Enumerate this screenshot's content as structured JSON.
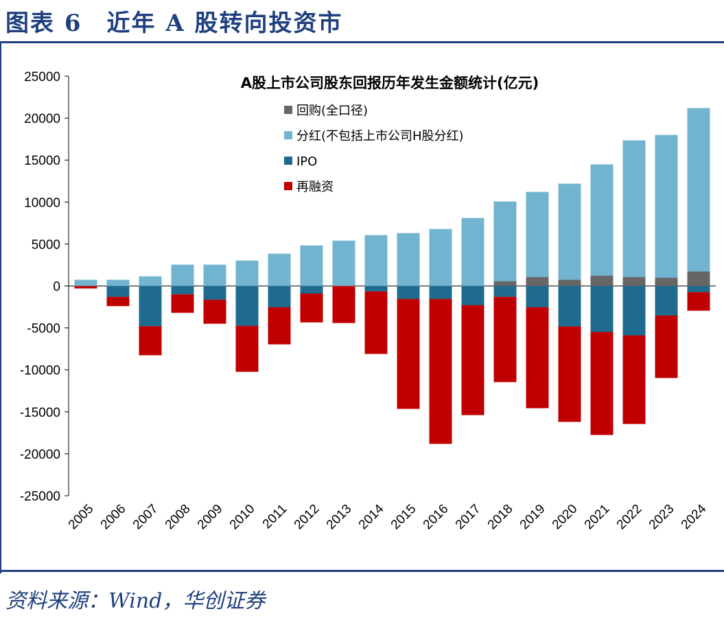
{
  "header": {
    "title": "图表 6　近年 A 股转向投资市"
  },
  "source": "资料来源：Wind，华创证券",
  "chart_data": {
    "type": "bar",
    "stacked": true,
    "title": "A股上市公司股东回报历年发生金额统计(亿元)",
    "xlabel": "",
    "ylabel": "",
    "ylim": [
      -25000,
      25000
    ],
    "yticks": [
      -25000,
      -20000,
      -15000,
      -10000,
      -5000,
      0,
      5000,
      10000,
      15000,
      20000,
      25000
    ],
    "grid": false,
    "legend": "top-left",
    "categories": [
      "2005",
      "2006",
      "2007",
      "2008",
      "2009",
      "2010",
      "2011",
      "2012",
      "2013",
      "2014",
      "2015",
      "2016",
      "2017",
      "2018",
      "2019",
      "2020",
      "2021",
      "2022",
      "2023",
      "2024"
    ],
    "series": [
      {
        "name": "回购(全口径)",
        "color": "#666666",
        "values": [
          0,
          0,
          0,
          0,
          0,
          0,
          0,
          0,
          0,
          0,
          0,
          0,
          0,
          570,
          1060,
          740,
          1230,
          1060,
          980,
          1720
        ]
      },
      {
        "name": "分红(不包括上市公司H股分红)",
        "color": "#72b4cf",
        "values": [
          740,
          740,
          1150,
          2540,
          2540,
          3030,
          3850,
          4830,
          5400,
          6060,
          6300,
          6790,
          8100,
          9500,
          10150,
          11450,
          13260,
          16290,
          17020,
          19480
        ]
      },
      {
        "name": "IPO",
        "color": "#1f6a8f",
        "values": [
          0,
          -1300,
          -4800,
          -1000,
          -1640,
          -4750,
          -2540,
          -900,
          0,
          -650,
          -1550,
          -1550,
          -2290,
          -1300,
          -2540,
          -4830,
          -5480,
          -5890,
          -3520,
          -740
        ]
      },
      {
        "name": "再融资",
        "color": "#c00000",
        "values": [
          -300,
          -1100,
          -3460,
          -2200,
          -2860,
          -5480,
          -4420,
          -3440,
          -4420,
          -7450,
          -13100,
          -17270,
          -13100,
          -10160,
          -12030,
          -11370,
          -12280,
          -10560,
          -7450,
          -2210
        ]
      }
    ]
  }
}
